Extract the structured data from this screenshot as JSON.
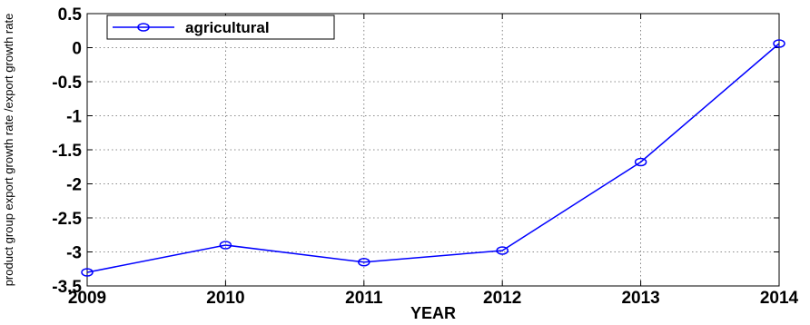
{
  "chart_data": {
    "type": "line",
    "x": [
      2009,
      2010,
      2011,
      2012,
      2013,
      2014
    ],
    "series": [
      {
        "name": "agricultural",
        "values": [
          -3.3,
          -2.9,
          -3.15,
          -2.98,
          -1.68,
          0.06
        ]
      }
    ],
    "xlabel": "YEAR",
    "ylabel": "product group export growth rate /export growth rate",
    "xlim": [
      2009,
      2014
    ],
    "ylim": [
      -3.5,
      0.5
    ],
    "x_ticks": [
      "2009",
      "2010",
      "2011",
      "2012",
      "2013",
      "2014"
    ],
    "y_ticks": [
      "0.5",
      "0",
      "-0.5",
      "-1",
      "-1.5",
      "-2",
      "-2.5",
      "-3",
      "-3.5"
    ],
    "grid": true,
    "legend_position": "top-left",
    "series_color": "#0000ff",
    "marker": "circle"
  }
}
